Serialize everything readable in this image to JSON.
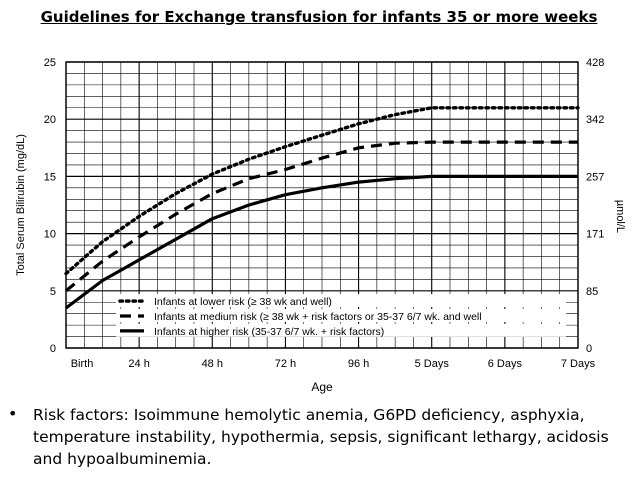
{
  "slide": {
    "title": "Guidelines for Exchange transfusion for infants 35 or more weeks",
    "bullet_symbol": "•",
    "bullet_text": "Risk factors: Isoimmune hemolytic anemia, G6PD deficiency, asphyxia, temperature instability, hypothermia, sepsis, significant lethargy, acidosis and hypoalbuminemia."
  },
  "chart_data": {
    "type": "line",
    "x_categories": [
      "Birth",
      "24 h",
      "48 h",
      "72 h",
      "96 h",
      "5 Days",
      "6 Days",
      "7 Days"
    ],
    "xlabel": "Age",
    "ylabel": "Total Serum Bilirubin (mg/dL)",
    "ylim": [
      0,
      25
    ],
    "yticks": [
      0,
      5,
      10,
      15,
      20,
      25
    ],
    "y2label": "µmol/L",
    "y2ticks": [
      {
        "value": 0,
        "label": "0"
      },
      {
        "value": 5,
        "label": "85"
      },
      {
        "value": 10,
        "label": "171"
      },
      {
        "value": 15,
        "label": "257"
      },
      {
        "value": 20,
        "label": "342"
      },
      {
        "value": 25,
        "label": "428"
      }
    ],
    "grid": true,
    "legend_position": "bottom-left inside plot",
    "series": [
      {
        "name": "Infants at lower risk (≥ 38 wk and well)",
        "style": "dotted",
        "x_hours": [
          0,
          12,
          24,
          36,
          48,
          60,
          72,
          84,
          96,
          108,
          120,
          144,
          168
        ],
        "values": [
          6.5,
          9.3,
          11.5,
          13.5,
          15.2,
          16.5,
          17.6,
          18.6,
          19.6,
          20.4,
          21,
          21,
          21
        ]
      },
      {
        "name": "Infants at medium risk (≥ 38 wk + risk factors or 35-37 6/7 wk. and well",
        "style": "dashed",
        "x_hours": [
          0,
          12,
          24,
          36,
          48,
          60,
          72,
          84,
          96,
          108,
          120,
          144,
          168
        ],
        "values": [
          5,
          7.6,
          9.7,
          11.7,
          13.5,
          14.8,
          15.6,
          16.6,
          17.5,
          17.9,
          18,
          18,
          18
        ]
      },
      {
        "name": "Infants at higher risk (35-37 6/7 wk. + risk factors)",
        "style": "solid",
        "x_hours": [
          0,
          12,
          24,
          36,
          48,
          60,
          72,
          84,
          96,
          108,
          120,
          144,
          168
        ],
        "values": [
          3.5,
          5.9,
          7.7,
          9.5,
          11.3,
          12.5,
          13.4,
          14,
          14.5,
          14.8,
          15,
          15,
          15
        ]
      }
    ],
    "colors": {
      "line": "#000000",
      "grid": "#000000",
      "background": "#ffffff"
    }
  }
}
